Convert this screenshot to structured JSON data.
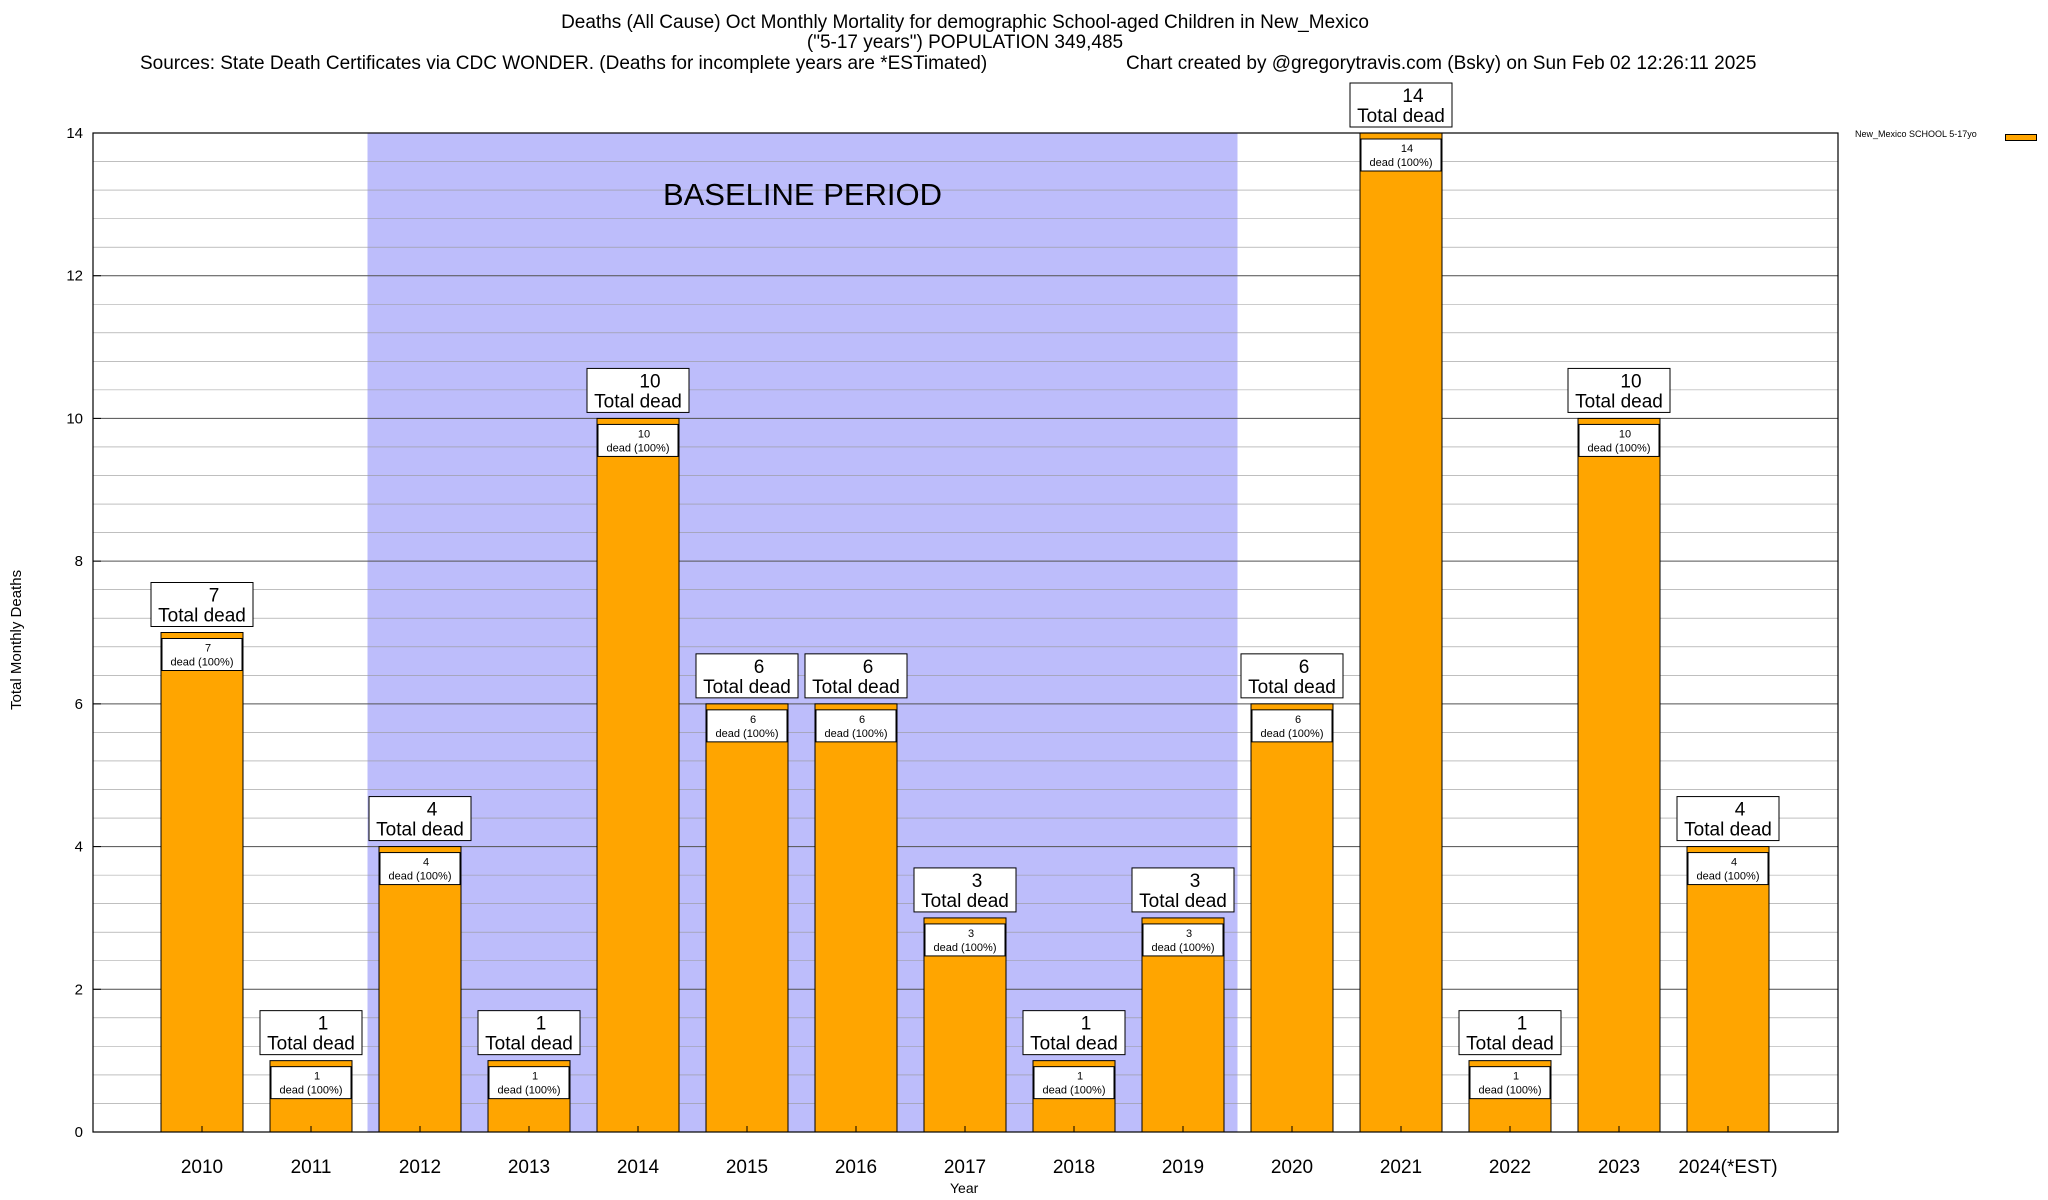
{
  "header": {
    "title_line1": "Deaths (All Cause) Oct Monthly Mortality for demographic School-aged Children in New_Mexico",
    "title_line2": "(\"5-17 years\") POPULATION 349,485",
    "sources": "Sources: State Death Certificates via CDC WONDER. (Deaths for incomplete years are *ESTimated)",
    "credit": "Chart created by @gregorytravis.com (Bsky) on Sun Feb 02 12:26:11 2025"
  },
  "chart_data": {
    "type": "bar",
    "categories": [
      "2010",
      "2011",
      "2012",
      "2013",
      "2014",
      "2015",
      "2016",
      "2017",
      "2018",
      "2019",
      "2020",
      "2021",
      "2022",
      "2023",
      "2024(*EST)"
    ],
    "series": [
      {
        "name": "New_Mexico SCHOOL 5-17yo",
        "values": [
          7,
          1,
          4,
          1,
          10,
          6,
          6,
          3,
          1,
          3,
          6,
          14,
          1,
          10,
          4
        ]
      }
    ],
    "xlabel": "Year",
    "ylabel": "Total Monthly Deaths",
    "ylim": [
      0,
      14
    ],
    "yticks": [
      0,
      2,
      4,
      6,
      8,
      10,
      12,
      14
    ],
    "minor_grid_step": 0.4,
    "grid": true,
    "legend_position": "top-right",
    "baseline_period": {
      "start": "2012",
      "end": "2019",
      "label": "BASELINE PERIOD"
    },
    "top_label_suffix": "Total dead",
    "inner_label_suffix": "dead (100%)",
    "colors": {
      "bar": "#FFA500",
      "baseline_shade": "#BDBDFB",
      "grid": "#999999"
    }
  }
}
